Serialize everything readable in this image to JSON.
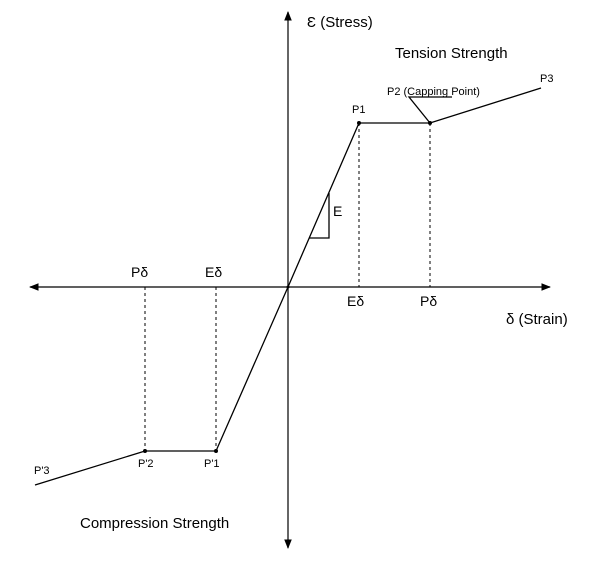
{
  "axes": {
    "y_label": "Ɛ (Stress)",
    "x_label": "δ (Strain)"
  },
  "regions": {
    "tension": "Tension Strength",
    "compression": "Compression Strength"
  },
  "points": {
    "p1": "P1",
    "p2": "P2 (Capping Point)",
    "p3": "P3",
    "p1_neg": "P'1",
    "p2_neg": "P'2",
    "p3_neg": "P'3"
  },
  "axis_marks": {
    "e_delta_pos": "Eδ",
    "p_delta_pos": "Pδ",
    "e_delta_neg": "Eδ",
    "p_delta_neg": "Pδ"
  },
  "slope_label": "E"
}
